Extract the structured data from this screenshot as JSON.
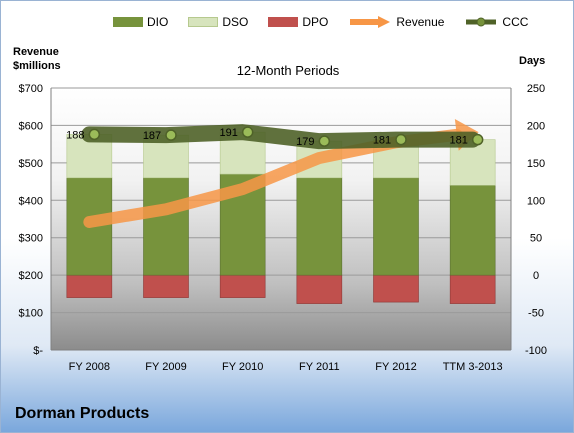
{
  "chart_data": {
    "type": "bar",
    "subtitle": "12-Month Periods",
    "company": "Dorman Products",
    "categories": [
      "FY 2008",
      "FY 2009",
      "FY 2010",
      "FY 2011",
      "FY 2012",
      "TTM 3-2013"
    ],
    "left_axis": {
      "title_line1": "Revenue",
      "title_line2": "$millions",
      "ticks": [
        "$-",
        "$100",
        "$200",
        "$300",
        "$400",
        "$500",
        "$600",
        "$700"
      ],
      "range": [
        0,
        700
      ]
    },
    "right_axis": {
      "title": "Days",
      "ticks": [
        "-100",
        "-50",
        "0",
        "50",
        "100",
        "150",
        "200",
        "250"
      ],
      "range": [
        -100,
        250
      ]
    },
    "series": [
      {
        "name": "DIO",
        "color": "#77933c",
        "values": [
          130,
          130,
          135,
          130,
          130,
          120
        ]
      },
      {
        "name": "DSO",
        "color": "#d7e4bd",
        "values": [
          58,
          57,
          56,
          49,
          51,
          61
        ]
      },
      {
        "name": "DPO",
        "color": "#c0504d",
        "values": [
          -30,
          -30,
          -30,
          -38,
          -36,
          -38
        ]
      },
      {
        "name": "Revenue",
        "color": "#f79646",
        "values": [
          342,
          376,
          430,
          513,
          555,
          580
        ]
      },
      {
        "name": "CCC",
        "color": "#4f6228",
        "values": [
          188,
          187,
          191,
          179,
          181,
          181
        ]
      }
    ],
    "ccc_labels": [
      "188",
      "187",
      "191",
      "179",
      "181",
      "181"
    ]
  }
}
